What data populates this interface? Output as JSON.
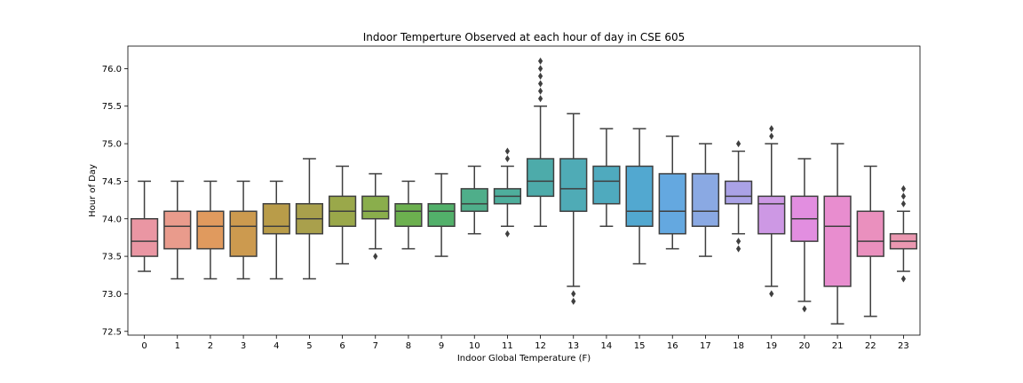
{
  "chart_data": {
    "type": "box",
    "title": "Indoor Temperture Observed at each hour of day in CSE 605",
    "xlabel": "Indoor Global Temperature (F)",
    "ylabel": "Hour of Day",
    "ylim": [
      72.45,
      76.3
    ],
    "yticks": [
      72.5,
      73.0,
      73.5,
      74.0,
      74.5,
      75.0,
      75.5,
      76.0
    ],
    "ytick_labels": [
      "72.5",
      "73.0",
      "73.5",
      "74.0",
      "74.5",
      "75.0",
      "75.5",
      "76.0"
    ],
    "grid": false,
    "categories": [
      "0",
      "1",
      "2",
      "3",
      "4",
      "5",
      "6",
      "7",
      "8",
      "9",
      "10",
      "11",
      "12",
      "13",
      "14",
      "15",
      "16",
      "17",
      "18",
      "19",
      "20",
      "21",
      "22",
      "23"
    ],
    "boxes": [
      {
        "whislo": 73.3,
        "q1": 73.5,
        "med": 73.7,
        "q3": 74.0,
        "whishi": 74.5,
        "fliers": [],
        "color": "#ea96a3"
      },
      {
        "whislo": 73.2,
        "q1": 73.6,
        "med": 73.9,
        "q3": 74.1,
        "whishi": 74.5,
        "fliers": [],
        "color": "#e99b8c"
      },
      {
        "whislo": 73.2,
        "q1": 73.6,
        "med": 73.9,
        "q3": 74.1,
        "whishi": 74.5,
        "fliers": [],
        "color": "#e09a5e"
      },
      {
        "whislo": 73.2,
        "q1": 73.5,
        "med": 73.9,
        "q3": 74.1,
        "whishi": 74.5,
        "fliers": [],
        "color": "#cc9a4f"
      },
      {
        "whislo": 73.2,
        "q1": 73.8,
        "med": 73.9,
        "q3": 74.2,
        "whishi": 74.5,
        "fliers": [],
        "color": "#b99c49"
      },
      {
        "whislo": 73.2,
        "q1": 73.8,
        "med": 74.0,
        "q3": 74.2,
        "whishi": 74.8,
        "fliers": [],
        "color": "#a9a04c"
      },
      {
        "whislo": 73.4,
        "q1": 73.9,
        "med": 74.1,
        "q3": 74.3,
        "whishi": 74.7,
        "fliers": [],
        "color": "#9aa84a"
      },
      {
        "whislo": 73.6,
        "q1": 74.0,
        "med": 74.1,
        "q3": 74.3,
        "whishi": 74.6,
        "fliers": [
          73.5
        ],
        "color": "#8aae4c"
      },
      {
        "whislo": 73.6,
        "q1": 73.9,
        "med": 74.1,
        "q3": 74.2,
        "whishi": 74.5,
        "fliers": [],
        "color": "#6cb04f"
      },
      {
        "whislo": 73.5,
        "q1": 73.9,
        "med": 74.1,
        "q3": 74.2,
        "whishi": 74.6,
        "fliers": [],
        "color": "#52b06a"
      },
      {
        "whislo": 73.8,
        "q1": 74.1,
        "med": 74.2,
        "q3": 74.4,
        "whishi": 74.7,
        "fliers": [],
        "color": "#4fae8a"
      },
      {
        "whislo": 73.9,
        "q1": 74.2,
        "med": 74.3,
        "q3": 74.4,
        "whishi": 74.7,
        "fliers": [
          73.8,
          74.8,
          74.9
        ],
        "color": "#4eae9c"
      },
      {
        "whislo": 73.9,
        "q1": 74.3,
        "med": 74.5,
        "q3": 74.8,
        "whishi": 75.5,
        "fliers": [
          75.6,
          75.7,
          75.8,
          75.9,
          76.0,
          76.1
        ],
        "color": "#4dabaa"
      },
      {
        "whislo": 73.1,
        "q1": 74.1,
        "med": 74.4,
        "q3": 74.8,
        "whishi": 75.4,
        "fliers": [
          72.9,
          73.0
        ],
        "color": "#4fabb6"
      },
      {
        "whislo": 73.9,
        "q1": 74.2,
        "med": 74.5,
        "q3": 74.7,
        "whishi": 75.2,
        "fliers": [],
        "color": "#4faabe"
      },
      {
        "whislo": 73.4,
        "q1": 73.9,
        "med": 74.1,
        "q3": 74.7,
        "whishi": 75.2,
        "fliers": [],
        "color": "#52a8d0"
      },
      {
        "whislo": 73.6,
        "q1": 73.8,
        "med": 74.1,
        "q3": 74.6,
        "whishi": 75.1,
        "fliers": [],
        "color": "#64a8e0"
      },
      {
        "whislo": 73.5,
        "q1": 73.9,
        "med": 74.1,
        "q3": 74.6,
        "whishi": 75.0,
        "fliers": [],
        "color": "#8aa9e3"
      },
      {
        "whislo": 73.8,
        "q1": 74.2,
        "med": 74.3,
        "q3": 74.5,
        "whishi": 74.9,
        "fliers": [
          73.6,
          73.7,
          75.0
        ],
        "color": "#aaa2e6"
      },
      {
        "whislo": 73.1,
        "q1": 73.8,
        "med": 74.2,
        "q3": 74.3,
        "whishi": 75.0,
        "fliers": [
          73.0,
          75.1,
          75.2
        ],
        "color": "#cd98e4"
      },
      {
        "whislo": 72.9,
        "q1": 73.7,
        "med": 74.0,
        "q3": 74.3,
        "whishi": 74.8,
        "fliers": [
          72.8
        ],
        "color": "#e28ee0"
      },
      {
        "whislo": 72.6,
        "q1": 73.1,
        "med": 73.9,
        "q3": 74.3,
        "whishi": 75.0,
        "fliers": [],
        "color": "#e88dcf"
      },
      {
        "whislo": 72.7,
        "q1": 73.5,
        "med": 73.7,
        "q3": 74.1,
        "whishi": 74.7,
        "fliers": [],
        "color": "#ea90be"
      },
      {
        "whislo": 73.3,
        "q1": 73.6,
        "med": 73.7,
        "q3": 73.8,
        "whishi": 74.1,
        "fliers": [
          73.2,
          74.2,
          74.3,
          74.4
        ],
        "color": "#ea97b0"
      }
    ]
  }
}
